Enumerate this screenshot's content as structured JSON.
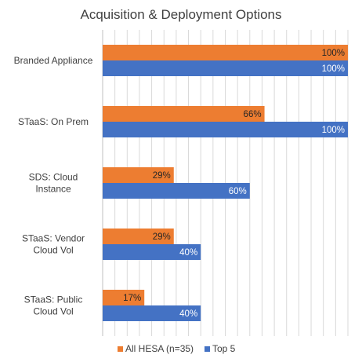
{
  "chart_data": {
    "type": "bar",
    "orientation": "horizontal",
    "title": "Acquisition & Deployment Options",
    "categories": [
      [
        "Branded Appliance"
      ],
      [
        "STaaS: On Prem"
      ],
      [
        "SDS: Cloud",
        "Instance"
      ],
      [
        "STaaS: Vendor",
        "Cloud Vol"
      ],
      [
        "STaaS: Public",
        "Cloud Vol"
      ]
    ],
    "series": [
      {
        "name": "All HESA (n=35)",
        "color": "#ED7D31",
        "values": [
          100,
          66,
          29,
          29,
          17
        ],
        "labels": [
          "100%",
          "66%",
          "29%",
          "29%",
          "17%"
        ]
      },
      {
        "name": "Top 5",
        "color": "#4472C4",
        "values": [
          100,
          100,
          60,
          40,
          40
        ],
        "labels": [
          "100%",
          "100%",
          "60%",
          "40%",
          "40%"
        ]
      }
    ],
    "xlim": [
      0,
      100
    ],
    "value_unit": "%",
    "grid": "vertical",
    "legend_position": "bottom-center"
  }
}
